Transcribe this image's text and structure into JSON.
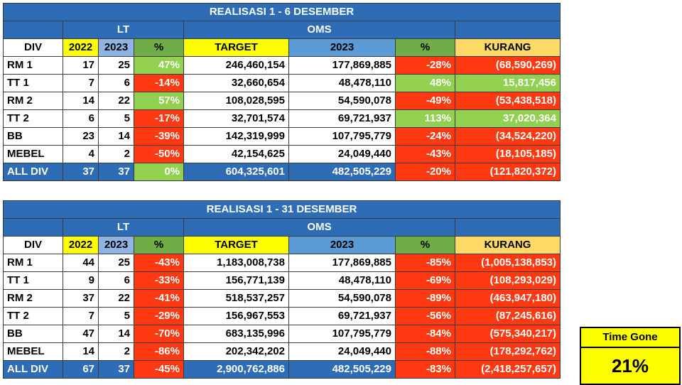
{
  "tables": [
    {
      "title": "REALISASI 1 - 6 DESEMBER",
      "group_lt": "LT",
      "group_oms": "OMS",
      "headers": [
        "DIV",
        "2022",
        "2023",
        "%",
        "TARGET",
        "2023",
        "%",
        "KURANG"
      ],
      "rows": [
        {
          "div": "RM 1",
          "y2022": "17",
          "y2023": "25",
          "pct": "47%",
          "target": "246,460,154",
          "oms2023": "177,869,885",
          "pct2": "-28%",
          "kurang": "(68,590,269)",
          "pct_status": "green",
          "pct2_status": "red",
          "kurang_status": "red"
        },
        {
          "div": "TT 1",
          "y2022": "7",
          "y2023": "6",
          "pct": "-14%",
          "target": "32,660,654",
          "oms2023": "48,478,110",
          "pct2": "48%",
          "kurang": "15,817,456",
          "pct_status": "red",
          "pct2_status": "green",
          "kurang_status": "green"
        },
        {
          "div": "RM 2",
          "y2022": "14",
          "y2023": "22",
          "pct": "57%",
          "target": "108,028,595",
          "oms2023": "54,590,078",
          "pct2": "-49%",
          "kurang": "(53,438,518)",
          "pct_status": "green",
          "pct2_status": "red",
          "kurang_status": "red"
        },
        {
          "div": "TT 2",
          "y2022": "6",
          "y2023": "5",
          "pct": "-17%",
          "target": "32,701,574",
          "oms2023": "69,721,937",
          "pct2": "113%",
          "kurang": "37,020,364",
          "pct_status": "red",
          "pct2_status": "green",
          "kurang_status": "green"
        },
        {
          "div": "BB",
          "y2022": "23",
          "y2023": "14",
          "pct": "-39%",
          "target": "142,319,999",
          "oms2023": "107,795,779",
          "pct2": "-24%",
          "kurang": "(34,524,220)",
          "pct_status": "red",
          "pct2_status": "red",
          "kurang_status": "red"
        },
        {
          "div": "MEBEL",
          "y2022": "4",
          "y2023": "2",
          "pct": "-50%",
          "target": "42,154,625",
          "oms2023": "24,049,440",
          "pct2": "-43%",
          "kurang": "(18,105,185)",
          "pct_status": "red",
          "pct2_status": "red",
          "kurang_status": "red"
        }
      ],
      "total": {
        "div": "ALL DIV",
        "y2022": "37",
        "y2023": "37",
        "pct": "0%",
        "target": "604,325,601",
        "oms2023": "482,505,229",
        "pct2": "-20%",
        "kurang": "(121,820,372)",
        "pct_status": "green",
        "pct2_status": "red",
        "kurang_status": "red"
      }
    },
    {
      "title": "REALISASI 1 - 31 DESEMBER",
      "group_lt": "LT",
      "group_oms": "OMS",
      "headers": [
        "DIV",
        "2022",
        "2023",
        "%",
        "TARGET",
        "2023",
        "%",
        "KURANG"
      ],
      "rows": [
        {
          "div": "RM 1",
          "y2022": "44",
          "y2023": "25",
          "pct": "-43%",
          "target": "1,183,008,738",
          "oms2023": "177,869,885",
          "pct2": "-85%",
          "kurang": "(1,005,138,853)",
          "pct_status": "red",
          "pct2_status": "red",
          "kurang_status": "red"
        },
        {
          "div": "TT 1",
          "y2022": "9",
          "y2023": "6",
          "pct": "-33%",
          "target": "156,771,139",
          "oms2023": "48,478,110",
          "pct2": "-69%",
          "kurang": "(108,293,029)",
          "pct_status": "red",
          "pct2_status": "red",
          "kurang_status": "red"
        },
        {
          "div": "RM 2",
          "y2022": "37",
          "y2023": "22",
          "pct": "-41%",
          "target": "518,537,257",
          "oms2023": "54,590,078",
          "pct2": "-89%",
          "kurang": "(463,947,180)",
          "pct_status": "red",
          "pct2_status": "red",
          "kurang_status": "red"
        },
        {
          "div": "TT 2",
          "y2022": "7",
          "y2023": "5",
          "pct": "-29%",
          "target": "156,967,553",
          "oms2023": "69,721,937",
          "pct2": "-56%",
          "kurang": "(87,245,616)",
          "pct_status": "red",
          "pct2_status": "red",
          "kurang_status": "red"
        },
        {
          "div": "BB",
          "y2022": "47",
          "y2023": "14",
          "pct": "-70%",
          "target": "683,135,996",
          "oms2023": "107,795,779",
          "pct2": "-84%",
          "kurang": "(575,340,217)",
          "pct_status": "red",
          "pct2_status": "red",
          "kurang_status": "red"
        },
        {
          "div": "MEBEL",
          "y2022": "14",
          "y2023": "2",
          "pct": "-86%",
          "target": "202,342,202",
          "oms2023": "24,049,440",
          "pct2": "-88%",
          "kurang": "(178,292,762)",
          "pct_status": "red",
          "pct2_status": "red",
          "kurang_status": "red"
        }
      ],
      "total": {
        "div": "ALL DIV",
        "y2022": "67",
        "y2023": "37",
        "pct": "-45%",
        "target": "2,900,762,886",
        "oms2023": "482,505,229",
        "pct2": "-83%",
        "kurang": "(2,418,257,657)",
        "pct_status": "red",
        "pct2_status": "red",
        "kurang_status": "red"
      }
    }
  ],
  "time_gone": {
    "label": "Time Gone",
    "value": "21%"
  },
  "colors": {
    "header_blue": "#2e6db5",
    "red": "#ff3a12",
    "green": "#92d050",
    "yellow": "#ffff00",
    "light_blue": "#8fb4e3",
    "orange": "#ffd966"
  }
}
